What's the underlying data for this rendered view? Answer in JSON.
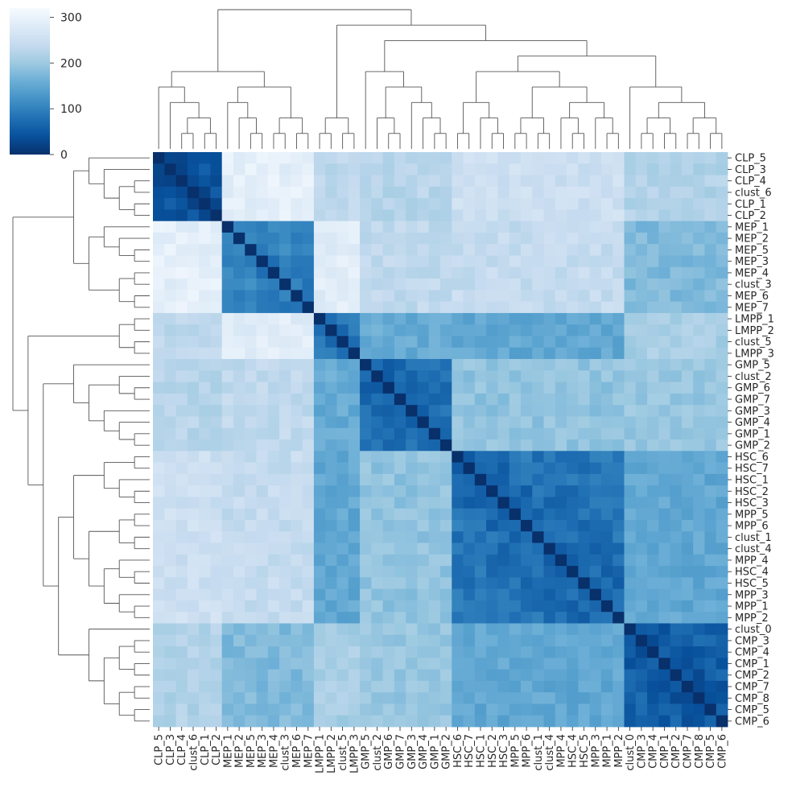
{
  "chart_data": {
    "type": "heatmap",
    "subtype": "clustermap",
    "colormap": "Blues_r",
    "value_range": [
      0,
      320
    ],
    "colorbar": {
      "ticks": [
        0,
        100,
        200,
        300
      ]
    },
    "labels": [
      "CLP_5",
      "CLP_3",
      "CLP_4",
      "clust_6",
      "CLP_1",
      "CLP_2",
      "MEP_1",
      "MEP_2",
      "MEP_5",
      "MEP_3",
      "MEP_4",
      "clust_3",
      "MEP_6",
      "MEP_7",
      "LMPP_1",
      "LMPP_2",
      "clust_5",
      "LMPP_3",
      "GMP_5",
      "clust_2",
      "GMP_6",
      "GMP_7",
      "GMP_3",
      "GMP_4",
      "GMP_1",
      "GMP_2",
      "HSC_6",
      "HSC_7",
      "HSC_1",
      "HSC_2",
      "HSC_3",
      "MPP_5",
      "MPP_6",
      "clust_1",
      "clust_4",
      "MPP_4",
      "HSC_4",
      "HSC_5",
      "MPP_3",
      "MPP_1",
      "MPP_2",
      "clust_0",
      "CMP_3",
      "CMP_4",
      "CMP_1",
      "CMP_2",
      "CMP_7",
      "CMP_8",
      "CMP_5",
      "CMP_6"
    ],
    "groups": [
      {
        "name": "CLP",
        "start": 0,
        "end": 5
      },
      {
        "name": "MEP",
        "start": 6,
        "end": 13
      },
      {
        "name": "LMPP",
        "start": 14,
        "end": 17
      },
      {
        "name": "GMP",
        "start": 18,
        "end": 25
      },
      {
        "name": "HSC/MPP",
        "start": 26,
        "end": 40
      },
      {
        "name": "CMP",
        "start": 41,
        "end": 49
      }
    ],
    "block_values": [
      [
        35,
        290,
        230,
        225,
        250,
        220
      ],
      [
        290,
        90,
        285,
        235,
        240,
        175
      ],
      [
        230,
        285,
        70,
        155,
        150,
        210
      ],
      [
        225,
        235,
        155,
        60,
        190,
        195
      ],
      [
        250,
        240,
        150,
        190,
        60,
        150
      ],
      [
        220,
        175,
        210,
        195,
        150,
        40
      ]
    ],
    "dendrogram": {
      "note": "hierarchical clustering shown on top and left margins; same tree for rows and columns",
      "tree": [
        [
          [
            0,
            [
              1,
              [
                [
                  2,
                  3
                ],
                [
                  4,
                  5
                ]
              ]
            ]
          ],
          [
            [
              6,
              [
                7,
                [
                  8,
                  9
                ]
              ]
            ],
            [
              [
                10,
                11
              ],
              [
                12,
                13
              ]
            ]
          ]
        ],
        [
          [
            [
              14,
              15
            ],
            [
              16,
              17
            ]
          ],
          [
            [
              18,
              [
                [
                  19,
                  [
                    20,
                    21
                  ]
                ],
                [
                  22,
                  [
                    23,
                    [
                      24,
                      25
                    ]
                  ]
                ]
              ]
            ],
            [
              [
                [
                  [
                    26,
                    27
                  ],
                  [
                    28,
                    [
                      29,
                      30
                    ]
                  ]
                ],
                [
                  [
                    [
                      31,
                      32
                    ],
                    [
                      33,
                      34
                    ]
                  ],
                  [
                    [
                      35,
                      [
                        36,
                        37
                      ]
                    ],
                    [
                      38,
                      [
                        39,
                        40
                      ]
                    ]
                  ]
                ]
              ],
              [
                41,
                [
                  [
                    [
                      42,
                      43
                    ],
                    [
                      44,
                      45
                    ]
                  ],
                  [
                    [
                      46,
                      47
                    ],
                    [
                      48,
                      49
                    ]
                  ]
                ]
              ]
            ]
          ]
        ]
      ]
    }
  }
}
